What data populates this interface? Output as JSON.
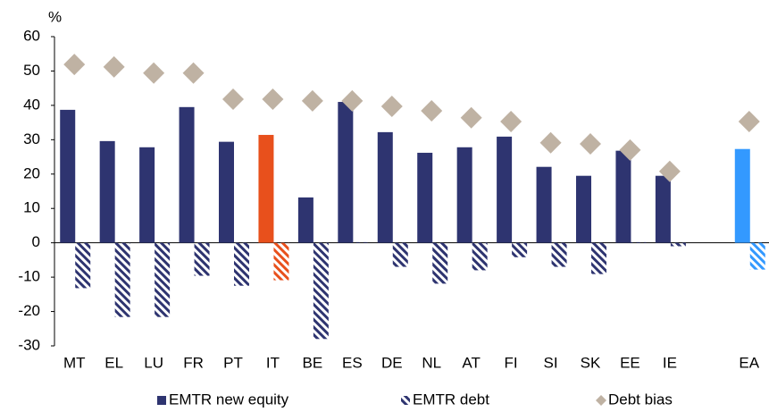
{
  "chart_data": {
    "type": "bar",
    "y_label": "%",
    "categories": [
      "MT",
      "EL",
      "LU",
      "FR",
      "PT",
      "IT",
      "BE",
      "ES",
      "DE",
      "NL",
      "AT",
      "FI",
      "SI",
      "SK",
      "EE",
      "IE",
      null,
      "EA"
    ],
    "series": [
      {
        "name": "EMTR new equity",
        "kind": "bar",
        "hatch": false,
        "color": "#2e3470",
        "colors": [
          "#2e3470",
          "#2e3470",
          "#2e3470",
          "#2e3470",
          "#2e3470",
          "#e8501c",
          "#2e3470",
          "#2e3470",
          "#2e3470",
          "#2e3470",
          "#2e3470",
          "#2e3470",
          "#2e3470",
          "#2e3470",
          "#2e3470",
          "#2e3470",
          "#2e3470",
          "#3399ff"
        ],
        "values": [
          38.7,
          29.6,
          27.8,
          39.5,
          29.4,
          31.4,
          13.2,
          41.0,
          32.2,
          26.2,
          27.8,
          30.9,
          22.1,
          19.5,
          26.8,
          19.5,
          null,
          27.3
        ]
      },
      {
        "name": "EMTR debt",
        "kind": "bar",
        "hatch": true,
        "color": "#2e3470",
        "colors": [
          "#2e3470",
          "#2e3470",
          "#2e3470",
          "#2e3470",
          "#2e3470",
          "#e8501c",
          "#2e3470",
          "#2e3470",
          "#2e3470",
          "#2e3470",
          "#2e3470",
          "#2e3470",
          "#2e3470",
          "#2e3470",
          "#2e3470",
          "#2e3470",
          "#2e3470",
          "#3399ff"
        ],
        "values": [
          -13.2,
          -21.6,
          -21.6,
          -9.6,
          -12.5,
          -10.9,
          -28.0,
          0.2,
          -7.0,
          -11.9,
          -8.0,
          -4.2,
          -7.0,
          -9.1,
          0.2,
          -1.0,
          null,
          -7.8
        ]
      },
      {
        "name": "Debt bias",
        "kind": "diamond",
        "hatch": false,
        "color": "#bfb2a3",
        "colors": [
          "#bfb2a3",
          "#bfb2a3",
          "#bfb2a3",
          "#bfb2a3",
          "#bfb2a3",
          "#bfb2a3",
          "#bfb2a3",
          "#bfb2a3",
          "#bfb2a3",
          "#bfb2a3",
          "#bfb2a3",
          "#bfb2a3",
          "#bfb2a3",
          "#bfb2a3",
          "#bfb2a3",
          "#bfb2a3",
          "#bfb2a3",
          "#bfb2a3"
        ],
        "values": [
          51.9,
          51.2,
          49.4,
          49.4,
          41.8,
          41.8,
          41.3,
          41.3,
          39.7,
          38.4,
          36.4,
          35.3,
          29.1,
          28.8,
          27.0,
          20.8,
          null,
          35.3
        ]
      }
    ],
    "ylim": [
      -30,
      60
    ],
    "yticks": [
      -30,
      -20,
      -10,
      0,
      10,
      20,
      30,
      40,
      50,
      60
    ],
    "grid": false
  }
}
